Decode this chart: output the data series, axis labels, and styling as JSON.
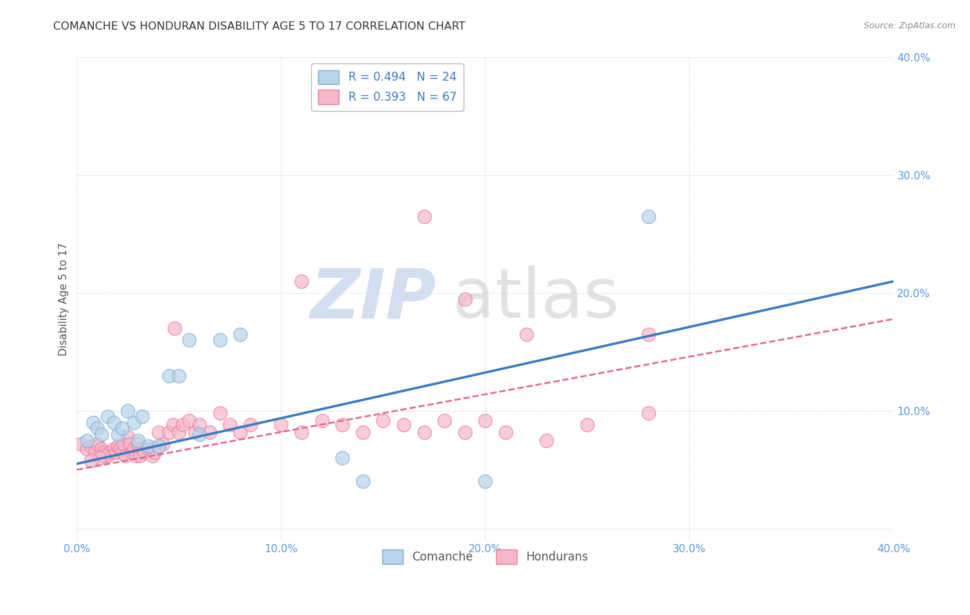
{
  "title": "COMANCHE VS HONDURAN DISABILITY AGE 5 TO 17 CORRELATION CHART",
  "source": "Source: ZipAtlas.com",
  "ylabel": "Disability Age 5 to 17",
  "xlim": [
    0.0,
    0.4
  ],
  "ylim": [
    -0.01,
    0.4
  ],
  "xticks": [
    0.0,
    0.1,
    0.2,
    0.3,
    0.4
  ],
  "yticks": [
    0.0,
    0.1,
    0.2,
    0.3,
    0.4
  ],
  "xtick_labels": [
    "0.0%",
    "10.0%",
    "20.0%",
    "30.0%",
    "40.0%"
  ],
  "ytick_labels": [
    "",
    "10.0%",
    "20.0%",
    "30.0%",
    "40.0%"
  ],
  "background_color": "#ffffff",
  "grid_color": "#cccccc",
  "comanche_color": "#b8d4ea",
  "honduran_color": "#f5b8cb",
  "comanche_edge_color": "#7aaed4",
  "honduran_edge_color": "#f07898",
  "comanche_line_color": "#3a7bbf",
  "honduran_line_color": "#e06888",
  "comanche_R": 0.494,
  "comanche_N": 24,
  "honduran_R": 0.393,
  "honduran_N": 67,
  "legend_r_color": "#3a7bbf",
  "comanche_scatter_x": [
    0.005,
    0.008,
    0.01,
    0.012,
    0.015,
    0.018,
    0.02,
    0.022,
    0.025,
    0.028,
    0.03,
    0.032,
    0.035,
    0.04,
    0.045,
    0.05,
    0.055,
    0.06,
    0.07,
    0.08,
    0.13,
    0.14,
    0.28,
    0.2
  ],
  "comanche_scatter_y": [
    0.075,
    0.09,
    0.085,
    0.08,
    0.095,
    0.09,
    0.08,
    0.085,
    0.1,
    0.09,
    0.075,
    0.095,
    0.07,
    0.07,
    0.13,
    0.13,
    0.16,
    0.08,
    0.16,
    0.165,
    0.06,
    0.04,
    0.265,
    0.04
  ],
  "honduran_scatter_x": [
    0.002,
    0.005,
    0.007,
    0.009,
    0.01,
    0.012,
    0.013,
    0.015,
    0.016,
    0.018,
    0.019,
    0.02,
    0.021,
    0.022,
    0.023,
    0.024,
    0.025,
    0.026,
    0.027,
    0.028,
    0.029,
    0.03,
    0.031,
    0.032,
    0.033,
    0.035,
    0.037,
    0.038,
    0.04,
    0.042,
    0.045,
    0.047,
    0.05,
    0.052,
    0.055,
    0.058,
    0.06,
    0.065,
    0.07,
    0.075,
    0.08,
    0.085,
    0.1,
    0.11,
    0.12,
    0.13,
    0.14,
    0.15,
    0.16,
    0.17,
    0.18,
    0.19,
    0.2,
    0.21,
    0.22,
    0.25,
    0.28,
    0.013,
    0.011,
    0.007,
    0.038,
    0.048,
    0.19,
    0.23,
    0.28,
    0.17,
    0.11
  ],
  "honduran_scatter_y": [
    0.072,
    0.068,
    0.07,
    0.065,
    0.072,
    0.068,
    0.065,
    0.062,
    0.065,
    0.068,
    0.065,
    0.07,
    0.068,
    0.065,
    0.072,
    0.062,
    0.078,
    0.072,
    0.065,
    0.068,
    0.062,
    0.072,
    0.062,
    0.068,
    0.065,
    0.068,
    0.062,
    0.068,
    0.082,
    0.072,
    0.082,
    0.088,
    0.082,
    0.088,
    0.092,
    0.082,
    0.088,
    0.082,
    0.098,
    0.088,
    0.082,
    0.088,
    0.088,
    0.082,
    0.092,
    0.088,
    0.082,
    0.092,
    0.088,
    0.082,
    0.092,
    0.082,
    0.092,
    0.082,
    0.165,
    0.088,
    0.165,
    0.062,
    0.06,
    0.058,
    0.065,
    0.17,
    0.195,
    0.075,
    0.098,
    0.265,
    0.21
  ],
  "comanche_line_x0": 0.0,
  "comanche_line_y0": 0.055,
  "comanche_line_x1": 0.4,
  "comanche_line_y1": 0.21,
  "honduran_line_x0": 0.0,
  "honduran_line_y0": 0.05,
  "honduran_line_x1": 0.4,
  "honduran_line_y1": 0.178
}
